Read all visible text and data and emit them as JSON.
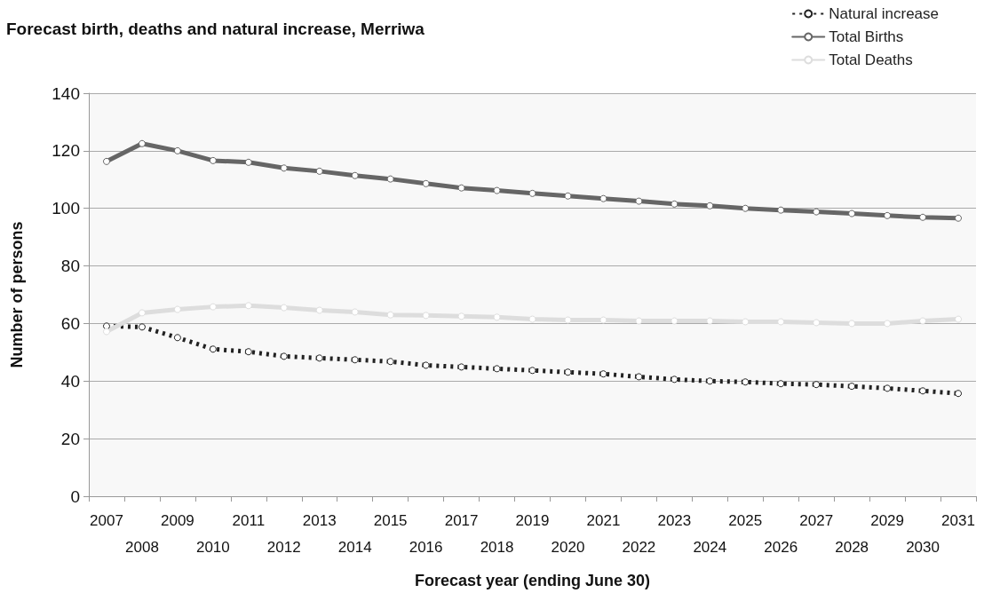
{
  "chart_data": {
    "type": "line",
    "title": "Forecast birth, deaths and natural increase, Merriwa",
    "xlabel": "Forecast year (ending June 30)",
    "ylabel": "Number of persons",
    "categories": [
      "2007",
      "2008",
      "2009",
      "2010",
      "2011",
      "2012",
      "2013",
      "2014",
      "2015",
      "2016",
      "2017",
      "2018",
      "2019",
      "2020",
      "2021",
      "2022",
      "2023",
      "2024",
      "2025",
      "2026",
      "2027",
      "2028",
      "2029",
      "2030",
      "2031"
    ],
    "series": [
      {
        "name": "Natural increase",
        "color": "#222222",
        "line_style": "dotted",
        "values": [
          59.1,
          58.8,
          55.1,
          51.1,
          50.2,
          48.6,
          48,
          47.4,
          46.8,
          45.5,
          44.9,
          44.3,
          43.7,
          43.1,
          42.5,
          41.5,
          40.6,
          40,
          39.7,
          39.1,
          38.8,
          38.2,
          37.5,
          36.6,
          35.7
        ]
      },
      {
        "name": "Total Births",
        "color": "#666666",
        "line_style": "solid",
        "values": [
          116.3,
          122.5,
          120,
          116.6,
          116,
          114,
          112.9,
          111.4,
          110.2,
          108.6,
          107.1,
          106.2,
          105.2,
          104.3,
          103.4,
          102.5,
          101.5,
          100.9,
          100,
          99.4,
          98.8,
          98.2,
          97.5,
          96.9,
          96.6
        ]
      },
      {
        "name": "Total Deaths",
        "color": "#dddddd",
        "line_style": "solid",
        "values": [
          57.2,
          63.7,
          64.9,
          65.8,
          66.2,
          65.5,
          64.6,
          64,
          63,
          62.8,
          62.5,
          62.2,
          61.5,
          61.2,
          61.2,
          60.9,
          60.9,
          60.9,
          60.6,
          60.6,
          60.3,
          60,
          60,
          60.9,
          61.5
        ]
      }
    ],
    "ylim": [
      0,
      140
    ],
    "yticks": [
      0,
      20,
      40,
      60,
      80,
      100,
      120,
      140
    ],
    "grid": "y",
    "legend": "top right",
    "marker": "circle"
  }
}
